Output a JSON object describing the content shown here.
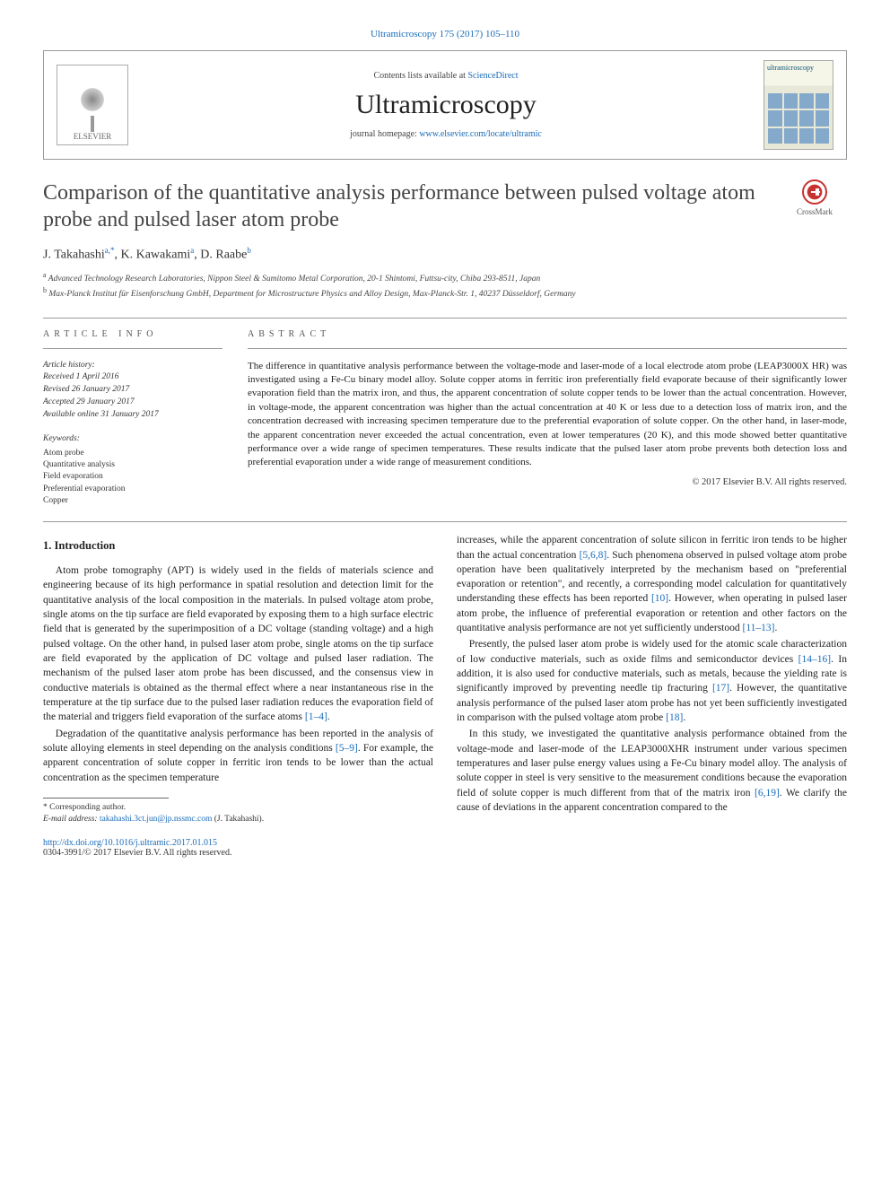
{
  "journal_ref": "Ultramicroscopy 175 (2017) 105–110",
  "header": {
    "contents_prefix": "Contents lists available at ",
    "contents_link": "ScienceDirect",
    "journal_name": "Ultramicroscopy",
    "homepage_prefix": "journal homepage: ",
    "homepage_link": "www.elsevier.com/locate/ultramic",
    "publisher_logo_label": "ELSEVIER",
    "cover_title": "ultramicroscopy"
  },
  "article": {
    "title": "Comparison of the quantitative analysis performance between pulsed voltage atom probe and pulsed laser atom probe",
    "crossmark_label": "CrossMark",
    "authors_html": "J. Takahashi<sup>a,*</sup>, K. Kawakami<sup>a</sup>, D. Raabe<sup>b</sup>",
    "affiliations": {
      "a": "Advanced Technology Research Laboratories, Nippon Steel & Sumitomo Metal Corporation, 20-1 Shintomi, Futtsu-city, Chiba 293-8511, Japan",
      "b": "Max-Planck Institut für Eisenforschung GmbH, Department for Microstructure Physics and Alloy Design, Max-Planck-Str. 1, 40237 Düsseldorf, Germany"
    }
  },
  "info": {
    "label": "ARTICLE INFO",
    "history_label": "Article history:",
    "received": "Received 1 April 2016",
    "revised": "Revised 26 January 2017",
    "accepted": "Accepted 29 January 2017",
    "online": "Available online 31 January 2017",
    "keywords_label": "Keywords:",
    "keywords": [
      "Atom probe",
      "Quantitative analysis",
      "Field evaporation",
      "Preferential evaporation",
      "Copper"
    ]
  },
  "abstract": {
    "label": "ABSTRACT",
    "text": "The difference in quantitative analysis performance between the voltage-mode and laser-mode of a local electrode atom probe (LEAP3000X HR) was investigated using a Fe-Cu binary model alloy. Solute copper atoms in ferritic iron preferentially field evaporate because of their significantly lower evaporation field than the matrix iron, and thus, the apparent concentration of solute copper tends to be lower than the actual concentration. However, in voltage-mode, the apparent concentration was higher than the actual concentration at 40 K or less due to a detection loss of matrix iron, and the concentration decreased with increasing specimen temperature due to the preferential evaporation of solute copper. On the other hand, in laser-mode, the apparent concentration never exceeded the actual concentration, even at lower temperatures (20 K), and this mode showed better quantitative performance over a wide range of specimen temperatures. These results indicate that the pulsed laser atom probe prevents both detection loss and preferential evaporation under a wide range of measurement conditions.",
    "copyright": "© 2017 Elsevier B.V. All rights reserved."
  },
  "body": {
    "heading": "1. Introduction",
    "p1": "Atom probe tomography (APT) is widely used in the fields of materials science and engineering because of its high performance in spatial resolution and detection limit for the quantitative analysis of the local composition in the materials. In pulsed voltage atom probe, single atoms on the tip surface are field evaporated by exposing them to a high surface electric field that is generated by the superimposition of a DC voltage (standing voltage) and a high pulsed voltage. On the other hand, in pulsed laser atom probe, single atoms on the tip surface are field evaporated by the application of DC voltage and pulsed laser radiation. The mechanism of the pulsed laser atom probe has been discussed, and the consensus view in conductive materials is obtained as the thermal effect where a near instantaneous rise in the temperature at the tip surface due to the pulsed laser radiation reduces the evaporation field of the material and triggers field evaporation of the surface atoms ",
    "p1_ref": "[1–4]",
    "p1_tail": ".",
    "p2": "Degradation of the quantitative analysis performance has been reported in the analysis of solute alloying elements in steel depending on the analysis conditions ",
    "p2_ref": "[5–9]",
    "p2_tail": ". For example, the apparent concentration of solute copper in ferritic iron tends to be lower than the actual concentration as the specimen temperature",
    "p3a": "increases, while the apparent concentration of solute silicon in ferritic iron tends to be higher than the actual concentration ",
    "p3a_ref": "[5,6,8]",
    "p3a_tail": ". Such phenomena observed in pulsed voltage atom probe operation have been qualitatively interpreted by the mechanism based on \"preferential evaporation or retention\", and recently, a corresponding model calculation for quantitatively understanding these effects has been reported ",
    "p3b_ref": "[10]",
    "p3b_tail": ". However, when operating in pulsed laser atom probe, the influence of preferential evaporation or retention and other factors on the quantitative analysis performance are not yet sufficiently understood ",
    "p3c_ref": "[11–13]",
    "p3c_tail": ".",
    "p4a": "Presently, the pulsed laser atom probe is widely used for the atomic scale characterization of low conductive materials, such as oxide films and semiconductor devices ",
    "p4a_ref": "[14–16]",
    "p4a_tail": ". In addition, it is also used for conductive materials, such as metals, because the yielding rate is significantly improved by preventing needle tip fracturing ",
    "p4b_ref": "[17]",
    "p4b_tail": ". However, the quantitative analysis performance of the pulsed laser atom probe has not yet been sufficiently investigated in comparison with the pulsed voltage atom probe ",
    "p4c_ref": "[18]",
    "p4c_tail": ".",
    "p5a": "In this study, we investigated the quantitative analysis performance obtained from the voltage-mode and laser-mode of the LEAP3000XHR instrument under various specimen temperatures and laser pulse energy values using a Fe-Cu binary model alloy. The analysis of solute copper in steel is very sensitive to the measurement conditions because the evaporation field of solute copper is much different from that of the matrix iron ",
    "p5a_ref": "[6,19]",
    "p5a_tail": ". We clarify the cause of deviations in the apparent concentration compared to the"
  },
  "footnotes": {
    "corr_label": "* Corresponding author.",
    "email_label": "E-mail address: ",
    "email": "takahashi.3ct.jun@jp.nssmc.com",
    "email_paren": " (J. Takahashi)."
  },
  "footer": {
    "doi": "http://dx.doi.org/10.1016/j.ultramic.2017.01.015",
    "issn_line": "0304-3991/© 2017 Elsevier B.V. All rights reserved."
  },
  "colors": {
    "link": "#1a6bb8",
    "text": "#222222",
    "rule": "#999999"
  }
}
